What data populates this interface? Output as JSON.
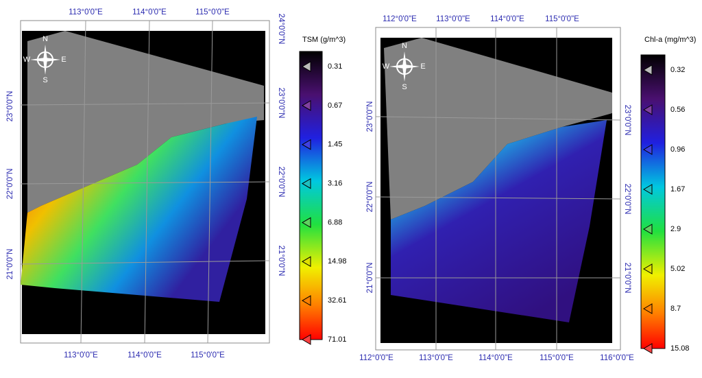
{
  "maps": [
    {
      "legend_title": "TSM (g/m^3)",
      "legend_labels": [
        "0.31",
        "0.67",
        "1.45",
        "3.16",
        "6.88",
        "14.98",
        "32.61",
        "71.01"
      ],
      "top_lon": [
        "113°0'0\"E",
        "114°0'0\"E",
        "115°0'0\"E"
      ],
      "bottom_lon": [
        "113°0'0\"E",
        "114°0'0\"E",
        "115°0'0\"E"
      ],
      "left_lat": [
        "23°0'0\"N",
        "22°0'0\"N",
        "21°0'0\"N"
      ],
      "right_lat": [
        "24°0'0\"N",
        "23°0'0\"N",
        "22°0'0\"N",
        "21°0'0\"N"
      ],
      "compass": [
        "N",
        "S",
        "W",
        "E"
      ]
    },
    {
      "legend_title": "Chl-a (mg/m^3)",
      "legend_labels": [
        "0.32",
        "0.56",
        "0.96",
        "1.67",
        "2.9",
        "5.02",
        "8.7",
        "15.08"
      ],
      "top_lon": [
        "112°0'0\"E",
        "113°0'0\"E",
        "114°0'0\"E",
        "115°0'0\"E"
      ],
      "bottom_lon": [
        "112°0'0\"E",
        "113°0'0\"E",
        "114°0'0\"E",
        "115°0'0\"E",
        "116°0'0\"E"
      ],
      "left_lat": [
        "23°0'0\"N",
        "22°0'0\"N",
        "21°0'0\"N"
      ],
      "right_lat": [
        "23°0'0\"N",
        "22°0'0\"N",
        "21°0'0\"N"
      ],
      "compass": [
        "N",
        "S",
        "W",
        "E"
      ]
    }
  ]
}
